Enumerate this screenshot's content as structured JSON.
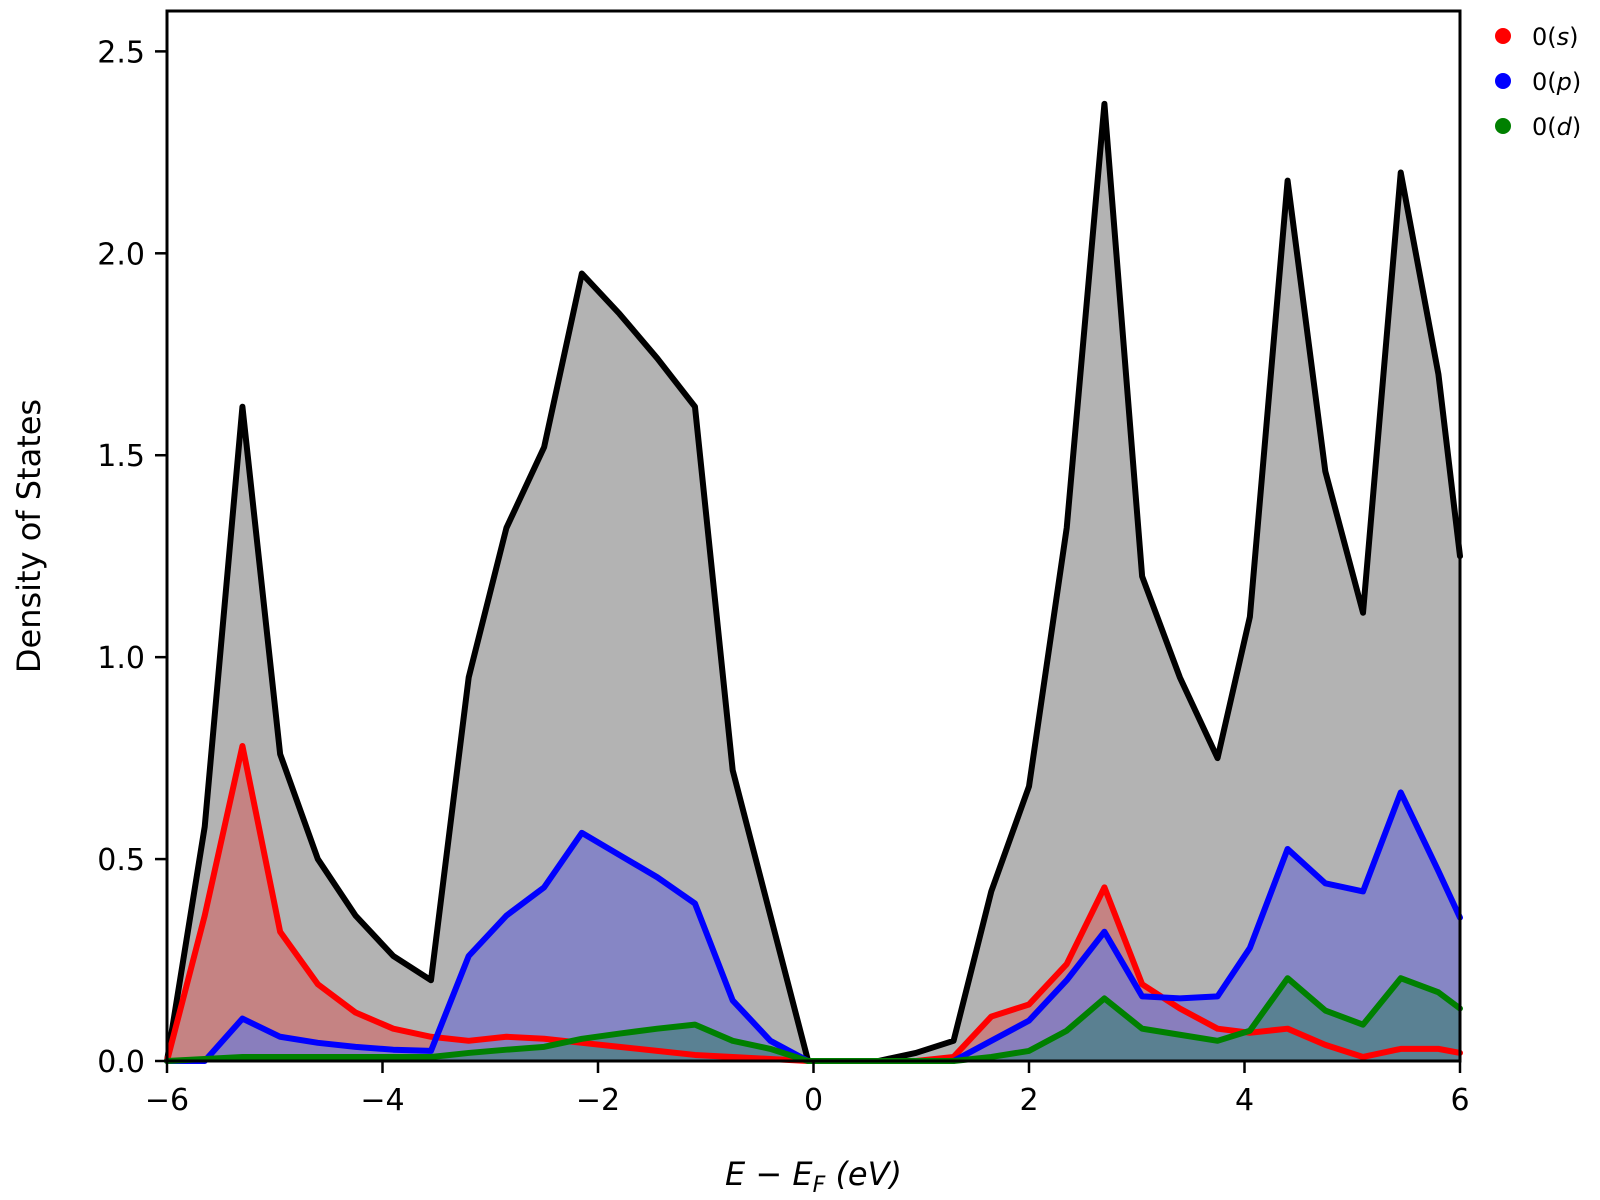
{
  "chart_data": {
    "type": "area",
    "xlabel": "E − E_F (eV)",
    "xlabel_parts": {
      "main": "E − E",
      "sub": "F",
      "tail": " (eV)"
    },
    "ylabel": "Density of States",
    "xlim": [
      -6,
      6
    ],
    "ylim": [
      0,
      2.6
    ],
    "xticks": [
      -6,
      -4,
      -2,
      0,
      2,
      4,
      6
    ],
    "xtick_labels": [
      "−6",
      "−4",
      "−2",
      "0",
      "2",
      "4",
      "6"
    ],
    "yticks": [
      0,
      0.5,
      1.0,
      1.5,
      2.0,
      2.5
    ],
    "ytick_labels": [
      "0.0",
      "0.5",
      "1.0",
      "1.5",
      "2.0",
      "2.5"
    ],
    "grid": false,
    "legend_position": "outside-top-right",
    "x": [
      -6.0,
      -5.65,
      -5.3,
      -4.95,
      -4.6,
      -4.25,
      -3.9,
      -3.55,
      -3.2,
      -2.85,
      -2.5,
      -2.15,
      -1.8,
      -1.45,
      -1.1,
      -0.75,
      -0.4,
      -0.05,
      0.3,
      0.6,
      0.95,
      1.3,
      1.65,
      2.0,
      2.35,
      2.7,
      3.05,
      3.4,
      3.75,
      4.05,
      4.4,
      4.75,
      5.1,
      5.45,
      5.8,
      6.0
    ],
    "total": {
      "name": "",
      "color": "#000000",
      "fill": "#b3b3b3",
      "values": [
        0.0,
        0.58,
        1.62,
        0.76,
        0.5,
        0.36,
        0.26,
        0.2,
        0.95,
        1.32,
        1.52,
        1.95,
        1.85,
        1.74,
        1.62,
        0.72,
        0.36,
        0.0,
        0.0,
        0.0,
        0.02,
        0.05,
        0.42,
        0.68,
        1.32,
        2.37,
        1.2,
        0.95,
        0.75,
        1.1,
        2.18,
        1.46,
        1.11,
        2.2,
        1.7,
        1.25
      ]
    },
    "series": [
      {
        "name": "0(s)",
        "name_parts": {
          "pre": "0(",
          "italic": "s",
          "post": ")"
        },
        "color": "#ff0000",
        "fill": "#c87a7a",
        "values": [
          0.0,
          0.36,
          0.78,
          0.32,
          0.19,
          0.12,
          0.08,
          0.06,
          0.05,
          0.06,
          0.055,
          0.045,
          0.035,
          0.025,
          0.015,
          0.01,
          0.005,
          0.0,
          0.0,
          0.0,
          0.0,
          0.01,
          0.11,
          0.14,
          0.24,
          0.43,
          0.19,
          0.13,
          0.08,
          0.07,
          0.08,
          0.04,
          0.01,
          0.03,
          0.03,
          0.02
        ]
      },
      {
        "name": "0(p)",
        "name_parts": {
          "pre": "0(",
          "italic": "p",
          "post": ")"
        },
        "color": "#0000ff",
        "fill": "#7e7ec8",
        "values": [
          0.0,
          0.0,
          0.105,
          0.06,
          0.045,
          0.035,
          0.028,
          0.025,
          0.26,
          0.36,
          0.43,
          0.565,
          0.51,
          0.455,
          0.39,
          0.15,
          0.05,
          0.0,
          0.0,
          0.0,
          0.0,
          0.0,
          0.05,
          0.1,
          0.2,
          0.32,
          0.16,
          0.155,
          0.16,
          0.28,
          0.525,
          0.44,
          0.42,
          0.665,
          0.47,
          0.355
        ]
      },
      {
        "name": "0(d)",
        "name_parts": {
          "pre": "0(",
          "italic": "d",
          "post": ")"
        },
        "color": "#008000",
        "fill": "#52808a",
        "values": [
          0.0,
          0.005,
          0.01,
          0.01,
          0.01,
          0.01,
          0.01,
          0.01,
          0.02,
          0.028,
          0.035,
          0.055,
          0.068,
          0.08,
          0.09,
          0.05,
          0.03,
          0.0,
          0.0,
          0.0,
          0.0,
          0.0,
          0.01,
          0.025,
          0.075,
          0.155,
          0.08,
          0.065,
          0.05,
          0.075,
          0.205,
          0.125,
          0.09,
          0.205,
          0.17,
          0.13
        ]
      }
    ]
  }
}
